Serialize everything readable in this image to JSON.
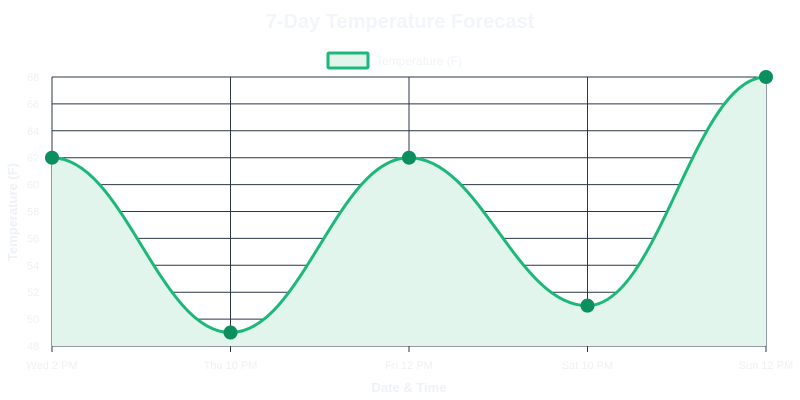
{
  "chart_data": {
    "type": "line",
    "title": "7-Day Temperature Forecast",
    "xlabel": "Date & Time",
    "ylabel": "Temperature (F)",
    "categories": [
      "Wed 2 PM",
      "Thu 10 PM",
      "Fri 12 PM",
      "Sat 10 PM",
      "Sun 12 PM"
    ],
    "series": [
      {
        "name": "Temperature (F)",
        "values": [
          62,
          49,
          62,
          51,
          68
        ]
      }
    ],
    "ylim": [
      48,
      68
    ],
    "yticks": [
      48,
      50,
      52,
      54,
      56,
      58,
      60,
      62,
      64,
      66,
      68
    ],
    "grid": true,
    "legend": "top",
    "fill": true,
    "colors": {
      "line": "#1cb87a",
      "point": "#0b8f5e",
      "fill": "#e2f5ec",
      "grid": "#2b3647"
    }
  }
}
